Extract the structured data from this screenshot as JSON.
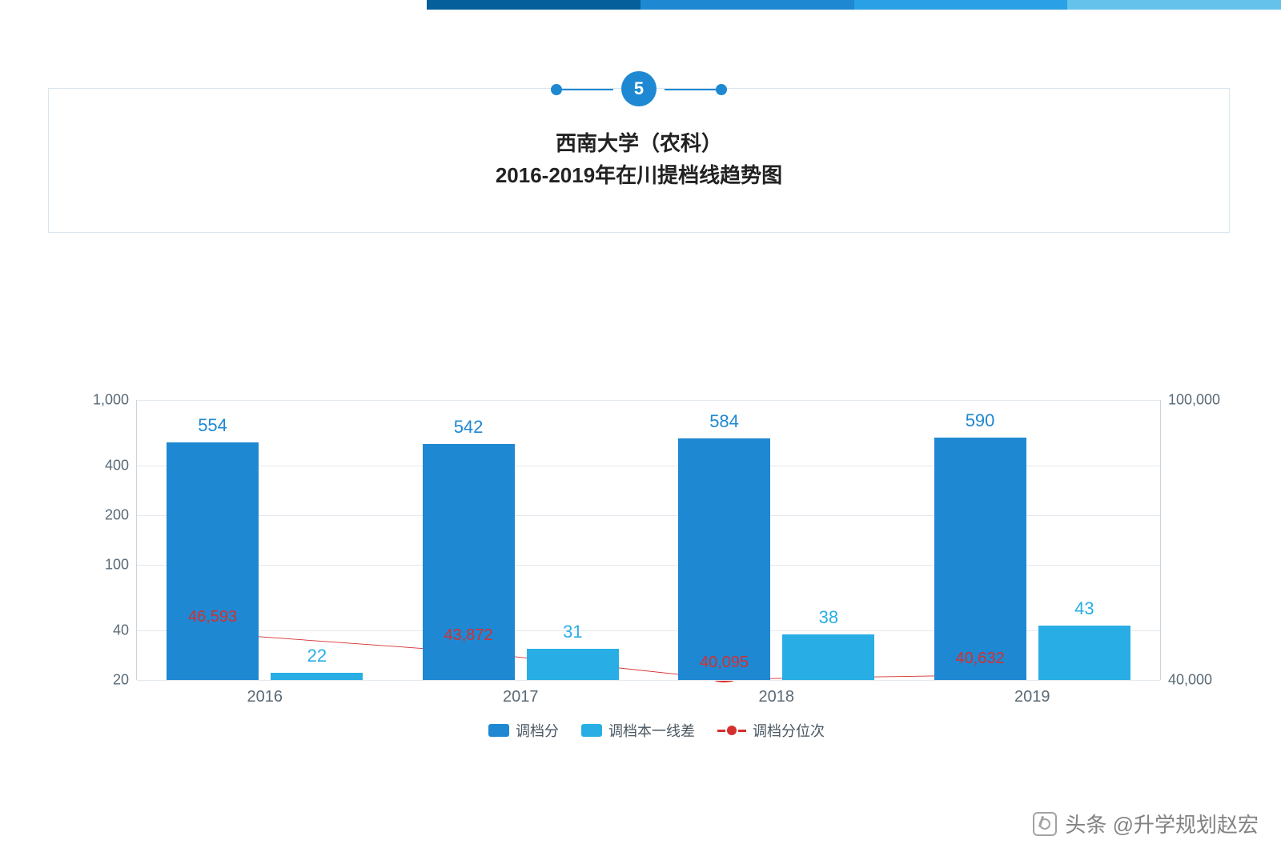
{
  "top_bands": [
    "#ffffff",
    "#ffffff",
    "#055f9a",
    "#1e88d2",
    "#2aa0e6",
    "#65c2eb"
  ],
  "badge_number": "5",
  "title_line1": "西南大学（农科）",
  "title_line2": "2016-2019年在川提档线趋势图",
  "chart": {
    "type": "bar+line",
    "categories": [
      "2016",
      "2017",
      "2018",
      "2019"
    ],
    "series_bar1": {
      "name": "调档分",
      "color": "#1e88d2",
      "label_color": "#1e88d2",
      "values": [
        554,
        542,
        584,
        590
      ]
    },
    "series_bar2": {
      "name": "调档本一线差",
      "color": "#28aee4",
      "label_color": "#28aee4",
      "values": [
        22,
        31,
        38,
        43
      ]
    },
    "series_line": {
      "name": "调档分位次",
      "color": "#d62f2f",
      "values": [
        46593,
        43872,
        40095,
        40632
      ],
      "labels": [
        "46,593",
        "43,872",
        "40,095",
        "40,632"
      ]
    },
    "y_left": {
      "ticks": [
        20,
        40,
        100,
        200,
        400,
        1000
      ],
      "labels": [
        "20",
        "40",
        "100",
        "200",
        "400",
        "1,000"
      ],
      "scale": "log"
    },
    "y_right": {
      "ticks": [
        40000,
        100000
      ],
      "labels": [
        "40,000",
        "100,000"
      ],
      "scale": "log"
    },
    "grid_color": "#e3e9ee",
    "axis_color": "#c9d4dc",
    "bar_width_pct": 9,
    "bar_gap_pct": 1.2,
    "label_fontsize": 22,
    "legend_fontsize": 18,
    "tick_fontsize": 18
  },
  "watermark": "头条 @升学规划赵宏"
}
